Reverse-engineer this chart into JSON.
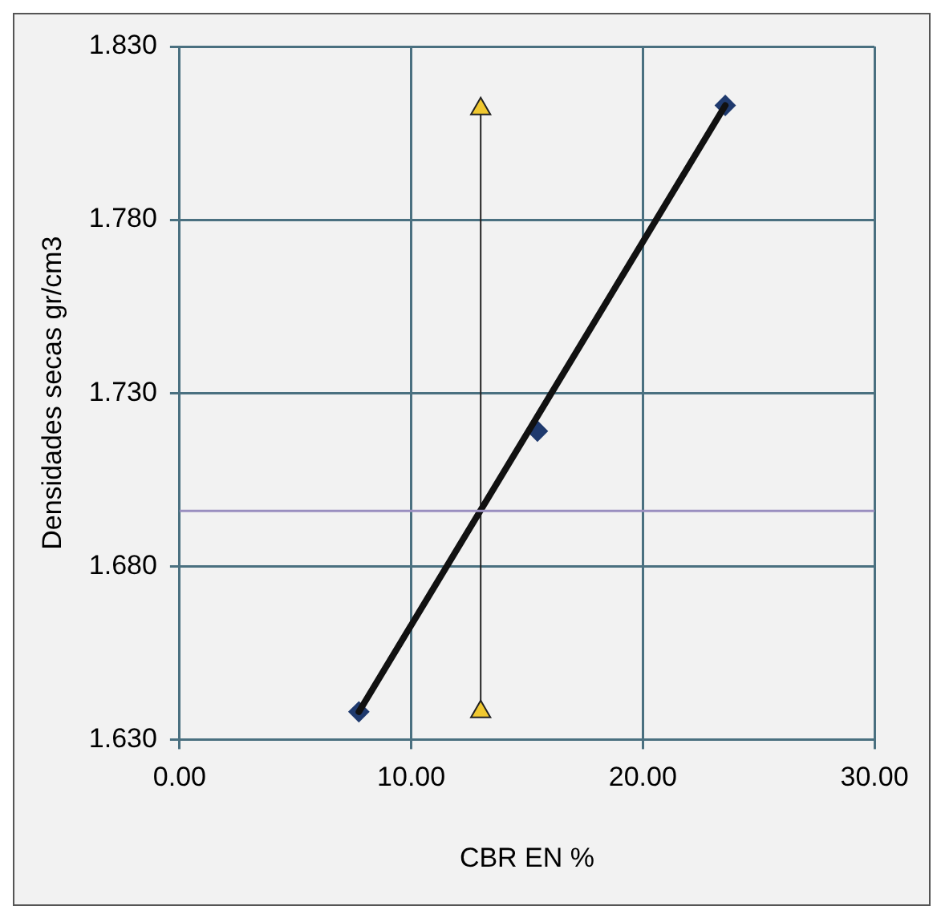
{
  "chart_data": {
    "type": "scatter",
    "xlabel": "CBR EN %",
    "ylabel": "Densidades secas gr/cm3",
    "xlim": [
      0,
      30
    ],
    "xticks": [
      {
        "value": 0,
        "label": "0.00"
      },
      {
        "value": 10,
        "label": "10.00"
      },
      {
        "value": 20,
        "label": "20.00"
      },
      {
        "value": 30,
        "label": "30.00"
      }
    ],
    "ylim": [
      1.63,
      1.83
    ],
    "yticks": [
      {
        "value": 1.63,
        "label": "1.630"
      },
      {
        "value": 1.68,
        "label": "1.680"
      },
      {
        "value": 1.73,
        "label": "1.730"
      },
      {
        "value": 1.78,
        "label": "1.780"
      },
      {
        "value": 1.83,
        "label": "1.830"
      }
    ],
    "grid": true,
    "legend": false,
    "series": [
      {
        "type": "line",
        "color": "#111111",
        "marker": "none",
        "x": [
          7.74,
          23.56
        ],
        "values": [
          1.638,
          1.813
        ]
      },
      {
        "type": "line",
        "color": "#f0c830",
        "marker": "triangle",
        "x": [
          13,
          13
        ],
        "values": [
          1.812,
          1.638
        ]
      },
      {
        "type": "scatter",
        "color": "#1f3a6e",
        "marker": "diamond",
        "x": [
          7.74,
          15.45,
          23.56
        ],
        "values": [
          1.638,
          1.719,
          1.813
        ]
      }
    ],
    "ref_lines": [
      {
        "axis": "y",
        "value": 1.696,
        "color": "#9a8fc0"
      }
    ]
  }
}
